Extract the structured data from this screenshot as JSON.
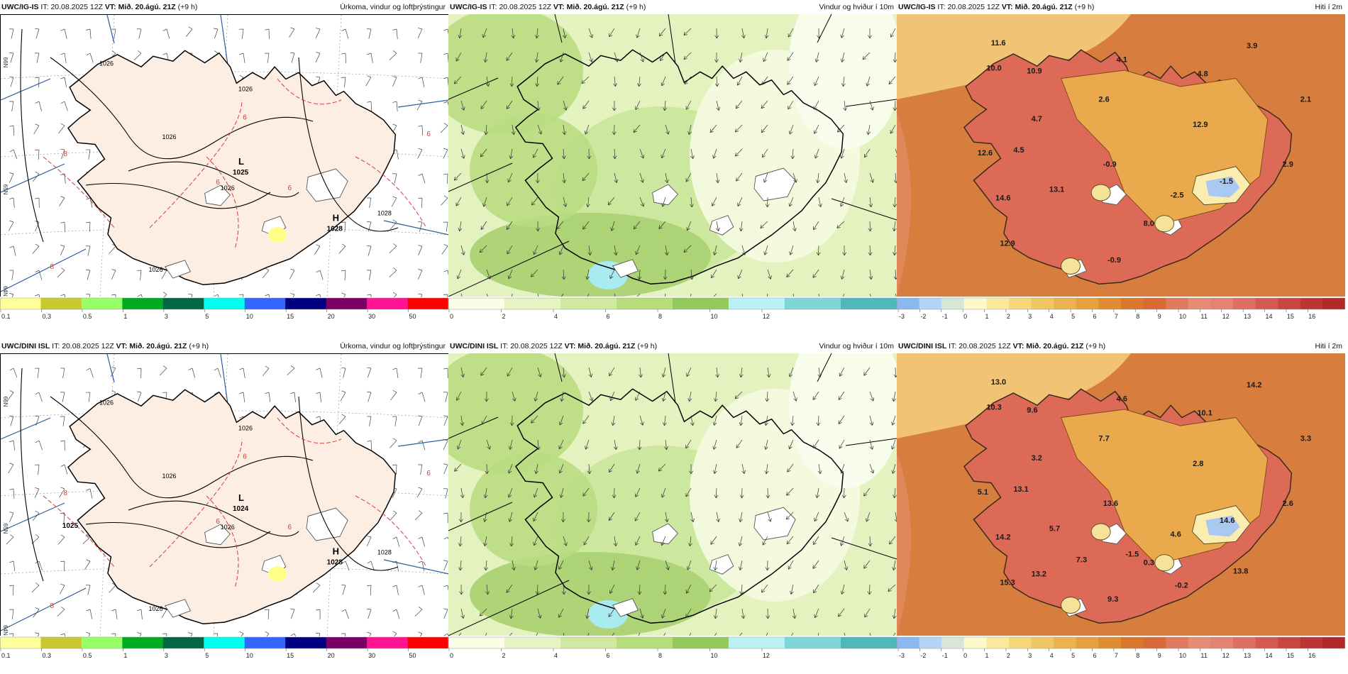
{
  "rows": [
    {
      "model": "UWC/IG-IS",
      "it_label": "IT:",
      "it": "20.08.2025 12Z",
      "vt_label": "VT:",
      "vt": "Mið. 20.ágú. 21Z",
      "lead": "(+9 h)",
      "pressure_centers": [
        {
          "label": "L",
          "value": "1025"
        },
        {
          "label": "H",
          "value": "1028"
        }
      ],
      "isobar_labels": [
        "1026",
        "1026",
        "1026",
        "1026",
        "1026",
        "1028"
      ],
      "precip_labels": [
        "6",
        "6",
        "6",
        "6",
        "8",
        "8"
      ],
      "temps": [
        "11.6",
        "10.0",
        "10.9",
        "4.1",
        "3.9",
        "4.8",
        "2.6",
        "4.7",
        "2.1",
        "12.9",
        "12.6",
        "4.5",
        "-0.9",
        "2.9",
        "-1.5",
        "13.1",
        "14.6",
        "-2.5",
        "8.0",
        "12.9",
        "-0.9"
      ],
      "lat_labels": [
        "66N",
        "65N",
        "64N"
      ]
    },
    {
      "model": "UWC/DINI ISL",
      "it_label": "IT:",
      "it": "20.08.2025 12Z",
      "vt_label": "VT:",
      "vt": "Mið. 20.ágú. 21Z",
      "lead": "(+9 h)",
      "pressure_centers": [
        {
          "label": "L",
          "value": "1024"
        },
        {
          "label": "",
          "value": "1025"
        },
        {
          "label": "H",
          "value": "1028"
        }
      ],
      "isobar_labels": [
        "1026",
        "1026",
        "1026",
        "1026",
        "1026",
        "1028"
      ],
      "precip_labels": [
        "6",
        "6",
        "6",
        "6",
        "8",
        "8"
      ],
      "temps": [
        "13.0",
        "10.3",
        "9.6",
        "4.6",
        "14.2",
        "10.1",
        "7.7",
        "3.2",
        "3.3",
        "2.8",
        "5.1",
        "13.1",
        "13.6",
        "2.6",
        "14.6",
        "5.7",
        "14.2",
        "4.6",
        "0.3",
        "15.3",
        "9.3",
        "13.8",
        "-1.5",
        "13.2",
        "7.3",
        "-0.2"
      ],
      "lat_labels": [
        "66N",
        "65N",
        "64N"
      ]
    }
  ],
  "panel_titles": {
    "precip": "Úrkoma, vindur og loftþrýstingur",
    "wind": "Vindur og hviður í 10m",
    "temp": "Hiti í 2m"
  },
  "colorbars": {
    "precip": {
      "labels": [
        "0.1",
        "0.3",
        "0.5",
        "1",
        "3",
        "5",
        "10",
        "15",
        "20",
        "30",
        "50"
      ],
      "colors": [
        "#ffff99",
        "#c8c830",
        "#99ff66",
        "#00aa22",
        "#006644",
        "#00ffee",
        "#3366ff",
        "#000080",
        "#7a0066",
        "#ff1493",
        "#ff0000"
      ]
    },
    "wind": {
      "labels": [
        "0",
        "2",
        "4",
        "6",
        "8",
        "10",
        "12"
      ],
      "colors": [
        "#fbfde6",
        "#e6f4c2",
        "#cfeaa0",
        "#b6dd7a",
        "#94c95c",
        "#b8f2f2",
        "#7fd6d6",
        "#4fb8b8"
      ]
    },
    "temp": {
      "labels": [
        "-3",
        "-2",
        "-1",
        "0",
        "1",
        "2",
        "3",
        "4",
        "5",
        "6",
        "7",
        "8",
        "9",
        "10",
        "11",
        "12",
        "13",
        "14",
        "15",
        "16"
      ],
      "colors": [
        "#8cb8f0",
        "#b4d4f6",
        "#d6e7d8",
        "#fff8c8",
        "#fbea9c",
        "#f6d77a",
        "#f0c563",
        "#ebb34f",
        "#e6a03f",
        "#e08c33",
        "#d9772c",
        "#d96a35",
        "#e07a5e",
        "#e68c74",
        "#e38374",
        "#dc6e62",
        "#d35a50",
        "#c84640",
        "#bd3434",
        "#b22828"
      ]
    }
  }
}
